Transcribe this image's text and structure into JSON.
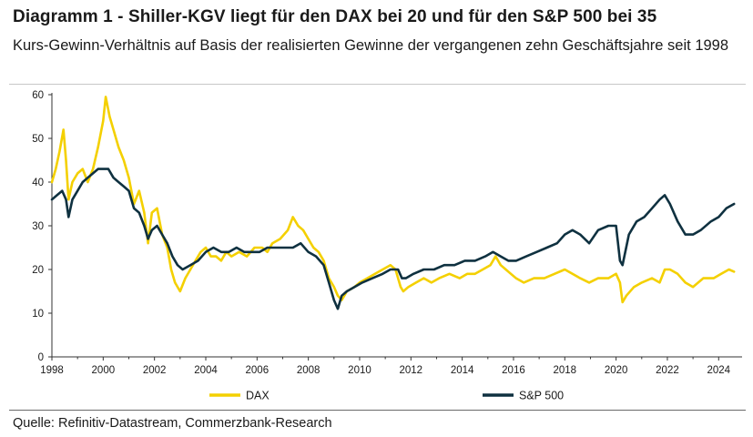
{
  "header": {
    "title": "Diagramm 1 - Shiller-KGV liegt für den DAX bei 20 und für den S&P 500 bei 35",
    "subtitle": "Kurs-Gewinn-Verhältnis auf Basis der realisierten Gewinne der vergangenen zehn Geschäftsjahre seit 1998"
  },
  "footer": {
    "source": "Quelle: Refinitiv-Datastream, Commerzbank-Research"
  },
  "colors": {
    "dax": "#f4d000",
    "sp500": "#0f3140",
    "axis": "#333333"
  },
  "chart_data": {
    "type": "line",
    "title": "Diagramm 1 - Shiller-KGV liegt für den DAX bei 20 und für den S&P 500 bei 35",
    "xlabel": "",
    "ylabel": "",
    "xlim": [
      1998,
      2024.7
    ],
    "ylim": [
      0,
      60
    ],
    "xticks": [
      "1998",
      "2000",
      "2002",
      "2004",
      "2006",
      "2008",
      "2010",
      "2012",
      "2014",
      "2016",
      "2018",
      "2020",
      "2022",
      "2024"
    ],
    "yticks": [
      "0",
      "10",
      "20",
      "30",
      "40",
      "50",
      "60"
    ],
    "grid": false,
    "legend": "bottom",
    "series": [
      {
        "name": "DAX",
        "color": "#f4d000",
        "x": [
          1998.0,
          1998.15,
          1998.3,
          1998.45,
          1998.55,
          1998.65,
          1998.8,
          1999.0,
          1999.2,
          1999.4,
          1999.6,
          1999.8,
          2000.0,
          2000.1,
          2000.25,
          2000.4,
          2000.6,
          2000.8,
          2001.0,
          2001.2,
          2001.4,
          2001.6,
          2001.75,
          2001.9,
          2002.1,
          2002.3,
          2002.5,
          2002.65,
          2002.8,
          2003.0,
          2003.2,
          2003.4,
          2003.6,
          2003.8,
          2004.0,
          2004.2,
          2004.4,
          2004.6,
          2004.8,
          2005.0,
          2005.3,
          2005.6,
          2005.9,
          2006.2,
          2006.4,
          2006.6,
          2006.9,
          2007.2,
          2007.4,
          2007.6,
          2007.8,
          2008.0,
          2008.2,
          2008.4,
          2008.6,
          2008.8,
          2009.0,
          2009.15,
          2009.3,
          2009.5,
          2009.8,
          2010.0,
          2010.3,
          2010.6,
          2010.9,
          2011.2,
          2011.4,
          2011.6,
          2011.7,
          2011.9,
          2012.2,
          2012.5,
          2012.8,
          2013.1,
          2013.5,
          2013.9,
          2014.2,
          2014.5,
          2014.8,
          2015.1,
          2015.3,
          2015.5,
          2015.7,
          2015.9,
          2016.1,
          2016.4,
          2016.8,
          2017.2,
          2017.6,
          2018.0,
          2018.3,
          2018.6,
          2018.95,
          2019.3,
          2019.7,
          2020.0,
          2020.15,
          2020.25,
          2020.4,
          2020.7,
          2021.0,
          2021.4,
          2021.7,
          2021.9,
          2022.1,
          2022.4,
          2022.7,
          2023.0,
          2023.4,
          2023.8,
          2024.1,
          2024.4,
          2024.6
        ],
        "values": [
          40,
          43,
          47,
          52,
          45,
          36,
          40,
          42,
          43,
          40,
          43,
          48,
          54,
          59.5,
          55,
          52,
          48,
          45,
          41,
          35,
          38,
          33,
          26,
          33,
          34,
          28,
          25,
          20,
          17,
          15,
          18,
          20,
          22,
          24,
          25,
          23,
          23,
          22,
          24,
          23,
          24,
          23,
          25,
          25,
          24,
          26,
          27,
          29,
          32,
          30,
          29,
          27,
          25,
          24,
          22,
          18,
          16,
          14,
          13,
          15,
          16,
          17,
          18,
          19,
          20,
          21,
          20,
          16,
          15,
          16,
          17,
          18,
          17,
          18,
          19,
          18,
          19,
          19,
          20,
          21,
          23,
          21,
          20,
          19,
          18,
          17,
          18,
          18,
          19,
          20,
          19,
          18,
          17,
          18,
          18,
          19,
          17,
          12.5,
          14,
          16,
          17,
          18,
          17,
          20,
          20,
          19,
          17,
          16,
          18,
          18,
          19,
          20,
          19.5
        ]
      },
      {
        "name": "S&P 500",
        "color": "#0f3140",
        "x": [
          1998.0,
          1998.2,
          1998.4,
          1998.55,
          1998.65,
          1998.8,
          1999.0,
          1999.2,
          1999.4,
          1999.6,
          1999.8,
          2000.0,
          2000.2,
          2000.4,
          2000.6,
          2000.8,
          2001.0,
          2001.2,
          2001.4,
          2001.6,
          2001.75,
          2001.9,
          2002.1,
          2002.3,
          2002.5,
          2002.7,
          2002.9,
          2003.1,
          2003.4,
          2003.7,
          2004.0,
          2004.3,
          2004.6,
          2004.9,
          2005.2,
          2005.5,
          2005.8,
          2006.1,
          2006.4,
          2006.8,
          2007.1,
          2007.4,
          2007.7,
          2008.0,
          2008.3,
          2008.6,
          2008.8,
          2009.0,
          2009.15,
          2009.3,
          2009.5,
          2009.8,
          2010.1,
          2010.5,
          2010.9,
          2011.2,
          2011.5,
          2011.65,
          2011.8,
          2012.1,
          2012.5,
          2012.9,
          2013.3,
          2013.7,
          2014.1,
          2014.5,
          2014.9,
          2015.2,
          2015.5,
          2015.8,
          2016.1,
          2016.5,
          2016.9,
          2017.3,
          2017.7,
          2018.0,
          2018.3,
          2018.6,
          2018.95,
          2019.3,
          2019.7,
          2020.0,
          2020.15,
          2020.25,
          2020.5,
          2020.8,
          2021.1,
          2021.4,
          2021.7,
          2021.9,
          2022.1,
          2022.4,
          2022.7,
          2023.0,
          2023.3,
          2023.7,
          2024.0,
          2024.3,
          2024.6
        ],
        "values": [
          36,
          37,
          38,
          36,
          32,
          36,
          38,
          40,
          41,
          42,
          43,
          43,
          43,
          41,
          40,
          39,
          38,
          34,
          33,
          30,
          27,
          29,
          30,
          28,
          26,
          23,
          21,
          20,
          21,
          22,
          24,
          25,
          24,
          24,
          25,
          24,
          24,
          24,
          25,
          25,
          25,
          25,
          26,
          24,
          23,
          21,
          17,
          13,
          11,
          14,
          15,
          16,
          17,
          18,
          19,
          20,
          20,
          18,
          18,
          19,
          20,
          20,
          21,
          21,
          22,
          22,
          23,
          24,
          23,
          22,
          22,
          23,
          24,
          25,
          26,
          28,
          29,
          28,
          26,
          29,
          30,
          30,
          22,
          21,
          28,
          31,
          32,
          34,
          36,
          37,
          35,
          31,
          28,
          28,
          29,
          31,
          32,
          34,
          35
        ]
      }
    ]
  }
}
